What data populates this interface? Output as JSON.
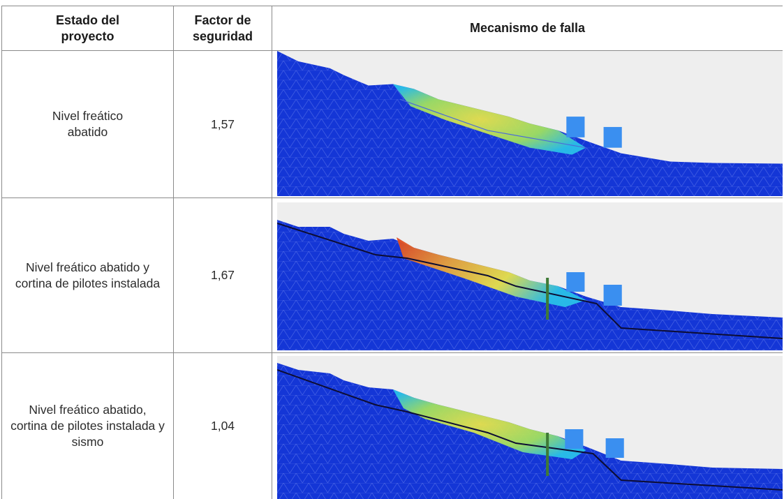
{
  "table": {
    "headers": {
      "estado": "Estado del proyecto",
      "factor": "Factor de seguridad",
      "mecanismo": "Mecanismo de falla"
    },
    "rows": [
      {
        "estado": "Nivel freático abatido",
        "factor": "1,57",
        "image": {
          "kind": "fem-slope-failure-mesh",
          "pile_wall": false,
          "water_table_line": false,
          "seismic": false
        }
      },
      {
        "estado": "Nivel freático abatido y cortina de pilotes instalada",
        "factor": "1,67",
        "image": {
          "kind": "fem-slope-failure-mesh",
          "pile_wall": true,
          "water_table_line": true,
          "seismic": false
        }
      },
      {
        "estado": "Nivel freático abatido, cortina de pilotes instalada y sismo",
        "factor": "1,04",
        "image": {
          "kind": "fem-slope-failure-mesh",
          "pile_wall": true,
          "water_table_line": true,
          "seismic": true
        }
      }
    ]
  },
  "colors": {
    "mesh_blue": "#1436d6",
    "sky_grey": "#eeeeee",
    "building_blue": "#3a8ff0",
    "pile_green": "#3f7a36",
    "hot_red": "#e0421e",
    "warm_yellow": "#e8e24a"
  }
}
